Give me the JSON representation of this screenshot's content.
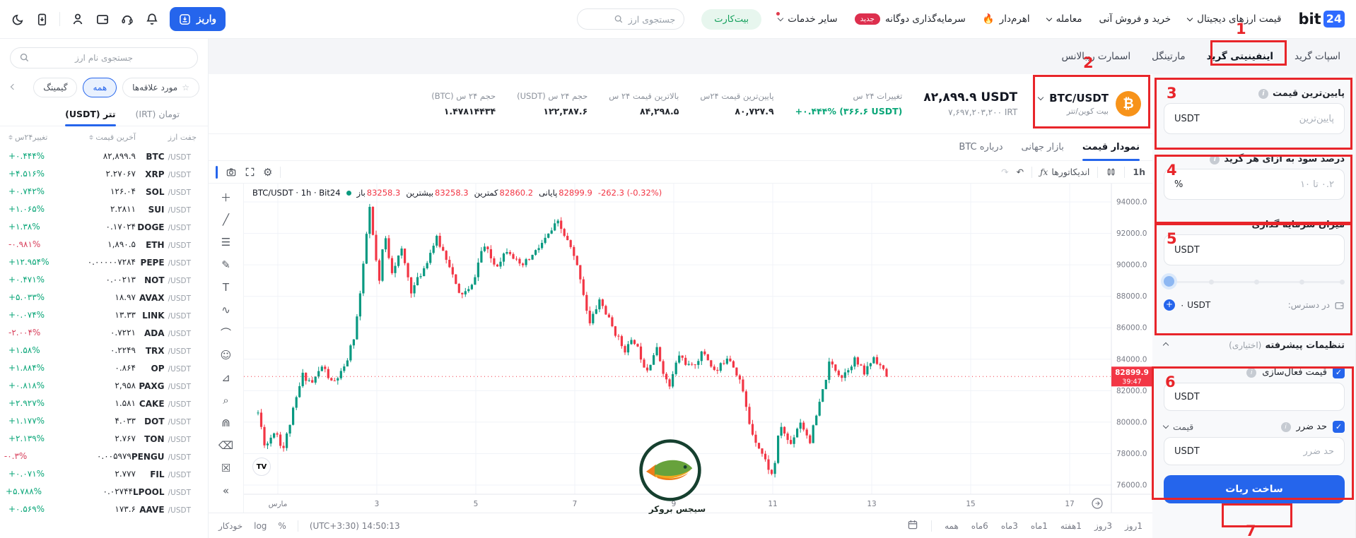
{
  "navbar": {
    "logo": {
      "text": "bit",
      "badge": "24"
    },
    "menu": [
      {
        "label": "قیمت ارزهای دیجیتال"
      },
      {
        "label": "خرید و فروش آنی"
      },
      {
        "label": "معامله"
      },
      {
        "label": "اهرم‌دار",
        "fire": "🔥"
      },
      {
        "label": "سرمایه‌گذاری دوگانه",
        "badge": "جدید"
      },
      {
        "label": "سایر خدمات"
      }
    ],
    "bitcard_label": "بیت‌کارت",
    "search_placeholder": "جستجوی ارز",
    "deposit_label": "واریز"
  },
  "grid_tabs": [
    {
      "label": "اسپات گرید"
    },
    {
      "label": "اینفینیتی گرید",
      "active": true
    },
    {
      "label": "مارتینگل"
    },
    {
      "label": "اسمارت ریبالانس"
    }
  ],
  "pair_header": {
    "pair": "BTC/USDT",
    "pair_fa": "بیت کوین/تتر",
    "price": "۸۲,۸۹۹.۹ USDT",
    "price_irt": "۷,۶۹۷,۲۰۳,۲۰۰ IRT",
    "stats": [
      {
        "label": "تغییرات ۲۴ س",
        "value": "+۰.۴۴۴% (۳۶۶.۶ USDT)",
        "dir": "up"
      },
      {
        "label": "پایین‌ترین قیمت ۲۴س",
        "value": "۸۰,۷۲۷.۹"
      },
      {
        "label": "بالاترین قیمت ۲۴ س",
        "value": "۸۴,۲۹۸.۵"
      },
      {
        "label": "حجم ۲۴ س (USDT)",
        "value": "۱۲۲,۳۸۷.۶"
      },
      {
        "label": "حجم ۲۴ س (BTC)",
        "value": "۱.۴۷۸۱۴۴۳۴"
      }
    ]
  },
  "chart_tabs": [
    {
      "label": "نمودار قیمت",
      "active": true
    },
    {
      "label": "بازار جهانی"
    },
    {
      "label": "درباره BTC"
    }
  ],
  "tv_toolbar": {
    "interval": "1h",
    "indicators": "اندیکاتورها",
    "fx": "ƒx",
    "undo": "↶",
    "redo": "↷"
  },
  "tv_drawing_tools": [
    {
      "name": "crosshair-tool",
      "glyph": "＋"
    },
    {
      "name": "trendline-tool",
      "glyph": "╱"
    },
    {
      "name": "fib-retracement-tool",
      "glyph": "☰"
    },
    {
      "name": "brush-tool",
      "glyph": "✎"
    },
    {
      "name": "text-tool",
      "glyph": "T"
    },
    {
      "name": "pattern-tool",
      "glyph": "∿"
    },
    {
      "name": "arc-tool",
      "glyph": "⌒"
    },
    {
      "name": "emoji-tool",
      "glyph": "☺"
    },
    {
      "name": "measure-tool",
      "glyph": "⊿"
    },
    {
      "name": "zoom-tool",
      "glyph": "⌕"
    },
    {
      "name": "magnet-tool",
      "glyph": "⋒"
    },
    {
      "name": "eraser-tool",
      "glyph": "⌫"
    },
    {
      "name": "remove-drawings-tool",
      "glyph": "☒"
    },
    {
      "name": "collapse-toolbar-button",
      "glyph": "«"
    }
  ],
  "tv_bottom": {
    "auto": "خودکار",
    "log": "log",
    "percent": "%",
    "clock": "(UTC+3:30) 14:50:13",
    "ranges": [
      "1روز",
      "3روز",
      "1هفته",
      "1ماه",
      "3ماه",
      "6ماه",
      "همه"
    ]
  },
  "watermark": {
    "text": "سیجس بروکر"
  },
  "sidebar": {
    "search_placeholder": "جستجوی نام ارز",
    "filters": [
      {
        "label": "مورد علاقه‌ها",
        "star": true
      },
      {
        "label": "همه",
        "active": true
      },
      {
        "label": "گیمینگ"
      }
    ],
    "tabs": [
      {
        "label": "تومان (IRT)"
      },
      {
        "label": "تتر (USDT)",
        "active": true
      }
    ],
    "columns": [
      "جفت ارز",
      "آخرین قیمت",
      "تغییر۲۴س"
    ],
    "quote": "/USDT",
    "rows": [
      {
        "sym": "BTC",
        "price": "۸۲,۸۹۹.۹",
        "chg": "+۰.۴۴۴%",
        "dir": "up"
      },
      {
        "sym": "XRP",
        "price": "۲.۲۷۰۶۷",
        "chg": "+۴.۵۱۶%",
        "dir": "up"
      },
      {
        "sym": "SOL",
        "price": "۱۲۶.۰۴",
        "chg": "+۰.۷۴۲%",
        "dir": "up"
      },
      {
        "sym": "SUI",
        "price": "۲.۲۸۱۱",
        "chg": "+۱.۰۶۵%",
        "dir": "up"
      },
      {
        "sym": "DOGE",
        "price": "۰.۱۷۰۲۴",
        "chg": "+۱.۳۸%",
        "dir": "up"
      },
      {
        "sym": "ETH",
        "price": "۱,۸۹۰.۵",
        "chg": "-۰.۹۸۱%",
        "dir": "down"
      },
      {
        "sym": "PEPE",
        "price": "۰.۰۰۰۰۰۷۲۸۴",
        "chg": "+۱۲.۹۵۴%",
        "dir": "up"
      },
      {
        "sym": "NOT",
        "price": "۰.۰۰۲۱۳",
        "chg": "+۰.۴۷۱%",
        "dir": "up"
      },
      {
        "sym": "AVAX",
        "price": "۱۸.۹۷",
        "chg": "+۵.۰۳۳%",
        "dir": "up"
      },
      {
        "sym": "LINK",
        "price": "۱۳.۳۳",
        "chg": "+۰.۰۷۴%",
        "dir": "up"
      },
      {
        "sym": "ADA",
        "price": "۰.۷۲۲۱",
        "chg": "-۲.۰۰۴%",
        "dir": "down"
      },
      {
        "sym": "TRX",
        "price": "۰.۲۲۴۹",
        "chg": "+۱.۵۸%",
        "dir": "up"
      },
      {
        "sym": "OP",
        "price": "۰.۸۶۴",
        "chg": "+۱.۸۸۴%",
        "dir": "up"
      },
      {
        "sym": "PAXG",
        "price": "۲,۹۵۸",
        "chg": "+۰.۸۱۸%",
        "dir": "up"
      },
      {
        "sym": "CAKE",
        "price": "۱.۵۸۱",
        "chg": "+۲.۹۲۷%",
        "dir": "up"
      },
      {
        "sym": "DOT",
        "price": "۴.۰۳۳",
        "chg": "+۱.۱۷۷%",
        "dir": "up"
      },
      {
        "sym": "TON",
        "price": "۲.۷۶۷",
        "chg": "+۲.۱۳۹%",
        "dir": "up"
      },
      {
        "sym": "PENGU",
        "price": "۰.۰۰۵۹۷۹",
        "chg": "-۰.۳%",
        "dir": "down"
      },
      {
        "sym": "FIL",
        "price": "۲.۷۷۷",
        "chg": "+۰.۰۷۱%",
        "dir": "up"
      },
      {
        "sym": "LPOOL",
        "price": "۰.۰۲۷۴۴",
        "chg": "+۵.۷۸۸%",
        "dir": "up"
      },
      {
        "sym": "AAVE",
        "price": "۱۷۳.۶",
        "chg": "+۰.۵۶۹%",
        "dir": "up"
      }
    ]
  },
  "bot_form": {
    "lowest_price": {
      "label": "پایین‌ترین قیمت",
      "placeholder": "پایین‌ترین",
      "suffix": "USDT"
    },
    "grid_profit": {
      "label": "درصد سود به ازای هر گرید",
      "placeholder": "۰.۲ تا ۱۰",
      "suffix": "%"
    },
    "investment": {
      "label": "میزان سرمایه گذاری",
      "suffix": "USDT"
    },
    "available_label": "در دسترس:",
    "available_value": "۰ USDT",
    "advanced_label": "تنظیمات پیشرفته",
    "advanced_optional": "(اختیاری)",
    "activation": {
      "label": "قیمت فعال‌سازی",
      "suffix": "USDT",
      "checked": true
    },
    "stoploss": {
      "label": "حد ضرر",
      "dropdown": "قیمت",
      "suffix": "USDT",
      "placeholder": "حد ضرر",
      "checked": true
    },
    "submit_label": "ساخت ربات"
  },
  "annotations": [
    "1",
    "2",
    "3",
    "4",
    "5",
    "6",
    "7"
  ],
  "chart_data": {
    "type": "candlestick",
    "symbol": "BTC/USDT",
    "interval": "1h",
    "exchange": "Bit24",
    "legend": {
      "symbol_text": "BTC/USDT · 1h · Bit24",
      "open_label": "باز",
      "open": "83258.3",
      "high_label": "بیشترین",
      "high": "83258.3",
      "low_label": "کمترین",
      "low": "82860.2",
      "close_label": "پایانی",
      "close": "82899.9",
      "change": "-262.3 (-0.32%)"
    },
    "last_price": 82899.9,
    "countdown": "39:47",
    "price_line": 82899.9,
    "ylim": [
      75300,
      95200
    ],
    "y_ticks": [
      94000,
      92000,
      90000,
      88000,
      86000,
      84000,
      82000,
      80000,
      78000,
      76000
    ],
    "x_ticks": [
      {
        "label": "مارس",
        "day": 1
      },
      {
        "label": "3",
        "day": 3
      },
      {
        "label": "5",
        "day": 5
      },
      {
        "label": "7",
        "day": 7
      },
      {
        "label": "9",
        "day": 9
      },
      {
        "label": "11",
        "day": 11
      },
      {
        "label": "13",
        "day": 13
      },
      {
        "label": "15",
        "day": 15
      },
      {
        "label": "17",
        "day": 17
      }
    ],
    "up_color": "#089981",
    "down_color": "#f23645",
    "price_path": [
      [
        0.6,
        80600
      ],
      [
        0.75,
        78400
      ],
      [
        0.95,
        79600
      ],
      [
        1.1,
        78200
      ],
      [
        1.35,
        81200
      ],
      [
        1.5,
        83000
      ],
      [
        1.7,
        82500
      ],
      [
        1.9,
        83600
      ],
      [
        2.1,
        82400
      ],
      [
        2.35,
        83400
      ],
      [
        2.55,
        85600
      ],
      [
        2.7,
        89000
      ],
      [
        2.85,
        93800
      ],
      [
        2.95,
        91000
      ],
      [
        3.05,
        88800
      ],
      [
        3.15,
        92100
      ],
      [
        3.3,
        89600
      ],
      [
        3.5,
        90900
      ],
      [
        3.7,
        88300
      ],
      [
        3.95,
        89800
      ],
      [
        4.2,
        91700
      ],
      [
        4.45,
        90200
      ],
      [
        4.65,
        88100
      ],
      [
        4.9,
        88400
      ],
      [
        5.15,
        91300
      ],
      [
        5.4,
        89900
      ],
      [
        5.65,
        91100
      ],
      [
        5.9,
        89800
      ],
      [
        6.15,
        90600
      ],
      [
        6.4,
        91600
      ],
      [
        6.65,
        92700
      ],
      [
        6.9,
        91200
      ],
      [
        7.1,
        89400
      ],
      [
        7.3,
        86200
      ],
      [
        7.5,
        87800
      ],
      [
        7.75,
        86100
      ],
      [
        8.0,
        84600
      ],
      [
        8.2,
        85200
      ],
      [
        8.45,
        83300
      ],
      [
        8.65,
        84700
      ],
      [
        8.9,
        82100
      ],
      [
        9.1,
        84300
      ],
      [
        9.35,
        83400
      ],
      [
        9.6,
        84500
      ],
      [
        9.85,
        83100
      ],
      [
        10.1,
        84300
      ],
      [
        10.35,
        82600
      ],
      [
        10.55,
        79600
      ],
      [
        10.8,
        77900
      ],
      [
        11.0,
        76500
      ],
      [
        11.15,
        79900
      ],
      [
        11.35,
        78500
      ],
      [
        11.55,
        80100
      ],
      [
        11.75,
        78800
      ],
      [
        11.95,
        81200
      ],
      [
        12.15,
        83800
      ],
      [
        12.4,
        82900
      ],
      [
        12.65,
        84000
      ],
      [
        12.85,
        83100
      ],
      [
        13.05,
        84200
      ],
      [
        13.3,
        82899.9
      ]
    ]
  }
}
